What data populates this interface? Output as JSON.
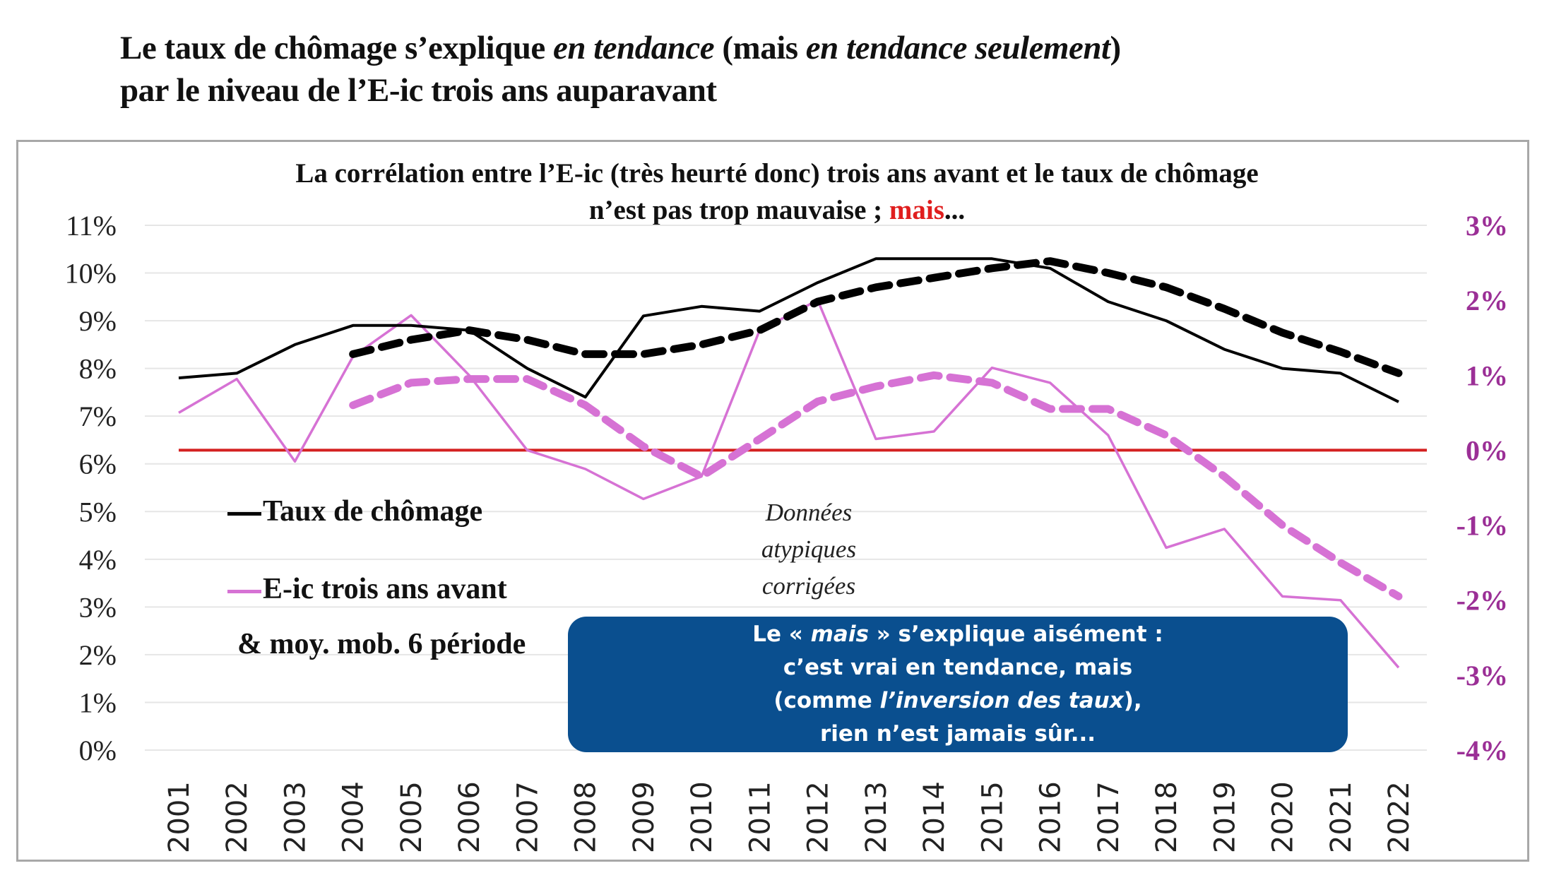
{
  "title": {
    "line1_a": "Le taux de chômage s’explique ",
    "line1_b": "en tendance",
    "line1_c": " (mais ",
    "line1_d": "en tendance seulement",
    "line1_e": ")",
    "line2": "par le niveau de l’E-ic trois ans auparavant"
  },
  "subtitle": {
    "line1": "La corrélation entre l’E-ic (très heurté donc) trois ans avant  et le taux de chômage",
    "line2_a": "n’est pas trop mauvaise ; ",
    "line2_b": "mais",
    "line2_c": "..."
  },
  "legend": {
    "unemployment": "Taux de chômage",
    "eic": "E-ic trois ans avant",
    "moving_avg": "& moy. mob. 6 période"
  },
  "note": {
    "line1": "Données",
    "line2": "atypiques",
    "line3": "corrigées"
  },
  "callout": {
    "line1_a": "Le « ",
    "line1_b": "mais",
    "line1_c": " » s’explique aisément :",
    "line2": "c’est vrai en tendance, mais",
    "line3_a": "(comme ",
    "line3_b": "l’inversion des taux",
    "line3_c": "),",
    "line4": "rien n’est jamais sûr..."
  },
  "colors": {
    "unemployment": "#000000",
    "eic": "#d672d4",
    "right_axis": "#9b2f96",
    "zero_line": "#d42020",
    "callout_bg": "#0a4f8f",
    "highlight": "#e01e1e"
  },
  "chart_data": {
    "type": "line",
    "title": "La corrélation entre l’E-ic (très heurté donc) trois ans avant et le taux de chômage n’est pas trop mauvaise ; mais...",
    "x": [
      "2001",
      "2002",
      "2003",
      "2004",
      "2005",
      "2006",
      "2007",
      "2008",
      "2009",
      "2010",
      "2011",
      "2012",
      "2013",
      "2014",
      "2015",
      "2016",
      "2017",
      "2018",
      "2019",
      "2020",
      "2021",
      "2022"
    ],
    "left_axis": {
      "ticks": [
        "0%",
        "1%",
        "2%",
        "3%",
        "4%",
        "5%",
        "6%",
        "7%",
        "8%",
        "9%",
        "10%",
        "11%"
      ],
      "range": [
        0,
        11
      ]
    },
    "right_axis": {
      "ticks": [
        "-4%",
        "-3%",
        "-2%",
        "-1%",
        "0%",
        "1%",
        "2%",
        "3%"
      ],
      "range": [
        -4,
        3
      ]
    },
    "grid": true,
    "legend_position": "left-middle",
    "series": [
      {
        "name": "Taux de chômage",
        "axis": "left",
        "style": "solid",
        "color": "#000000",
        "values": [
          7.8,
          7.9,
          8.5,
          8.9,
          8.9,
          8.8,
          8.0,
          7.4,
          9.1,
          9.3,
          9.2,
          9.8,
          10.3,
          10.3,
          10.3,
          10.1,
          9.4,
          9.0,
          8.4,
          8.0,
          7.9,
          7.3
        ]
      },
      {
        "name": "Taux de chômage (moy. mob.)",
        "axis": "left",
        "style": "dashed",
        "color": "#000000",
        "values": [
          null,
          null,
          null,
          8.3,
          8.6,
          8.8,
          8.6,
          8.3,
          8.3,
          8.5,
          8.8,
          9.4,
          9.7,
          9.9,
          10.1,
          10.25,
          10.0,
          9.7,
          9.25,
          8.75,
          8.35,
          7.9
        ]
      },
      {
        "name": "E-ic trois ans avant",
        "axis": "right",
        "style": "solid",
        "color": "#d672d4",
        "values": [
          0.5,
          0.95,
          -0.15,
          1.25,
          1.8,
          1.0,
          0.0,
          -0.25,
          -0.65,
          -0.35,
          1.6,
          2.0,
          0.15,
          0.25,
          1.1,
          0.9,
          0.2,
          -1.3,
          -1.05,
          -1.95,
          -2.0,
          -2.9
        ]
      },
      {
        "name": "E-ic trois ans avant (moy. mob. 6 période)",
        "axis": "right",
        "style": "dashed",
        "color": "#d672d4",
        "values": [
          null,
          null,
          null,
          0.6,
          0.9,
          0.95,
          0.95,
          0.6,
          0.05,
          -0.35,
          0.15,
          0.65,
          0.85,
          1.0,
          0.9,
          0.55,
          0.55,
          0.2,
          -0.35,
          -1.0,
          -1.5,
          -1.95
        ]
      },
      {
        "name": "Zéro",
        "axis": "right",
        "style": "solid",
        "color": "#d42020",
        "values": [
          0,
          0,
          0,
          0,
          0,
          0,
          0,
          0,
          0,
          0,
          0,
          0,
          0,
          0,
          0,
          0,
          0,
          0,
          0,
          0,
          0,
          0
        ]
      }
    ],
    "annotations": [
      "Données atypiques corrigées",
      "Le « mais » s’explique aisément : c’est vrai en tendance, mais (comme l’inversion des taux), rien n’est jamais sûr..."
    ]
  }
}
